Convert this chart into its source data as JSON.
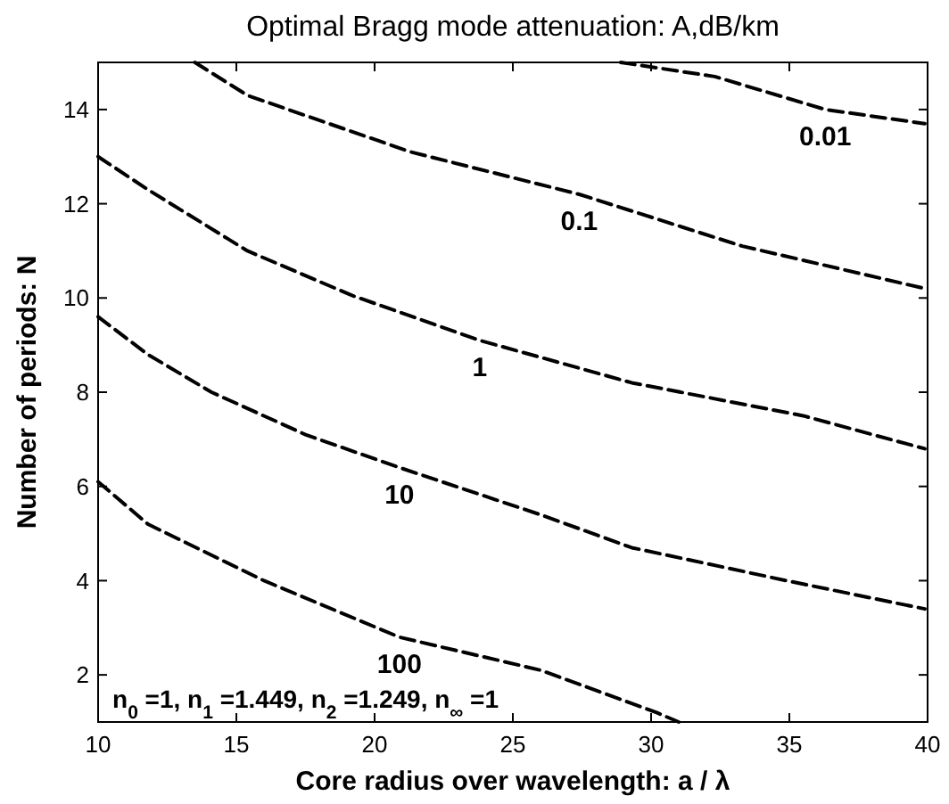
{
  "chart_data": {
    "type": "line",
    "title": "Optimal Bragg mode attenuation: A,dB/km",
    "xlabel": "Core radius over wavelength: a / λ",
    "ylabel": "Number of periods: N",
    "xlim": [
      10,
      40
    ],
    "ylim": [
      1,
      15
    ],
    "xticks": [
      10,
      15,
      20,
      25,
      30,
      35,
      40
    ],
    "yticks": [
      2,
      4,
      6,
      8,
      10,
      12,
      14
    ],
    "grid": false,
    "line_style": "dashed",
    "marker": "none",
    "annotations": [
      "n$_{0}$ =1,  n$_{1}$ =1.449,  n$_{2}$ =1.249,  n$_{∞}$ =1"
    ],
    "series": [
      {
        "name": "0.01",
        "color": "#000000",
        "x": [
          28.9,
          32.3,
          36.3,
          39.9
        ],
        "values": [
          15,
          14.7,
          14.0,
          13.7
        ]
      },
      {
        "name": "0.1",
        "color": "#000000",
        "x": [
          13.5,
          15.4,
          21.3,
          27.4,
          33.3,
          39.9
        ],
        "values": [
          15,
          14.3,
          13.1,
          12.2,
          11.1,
          10.2
        ]
      },
      {
        "name": "1",
        "color": "#000000",
        "x": [
          10,
          11.8,
          15.4,
          19.2,
          23.8,
          29.3,
          35.5,
          39.9
        ],
        "values": [
          13.0,
          12.3,
          11.0,
          10.05,
          9.1,
          8.2,
          7.5,
          6.8
        ]
      },
      {
        "name": "10",
        "color": "#000000",
        "x": [
          10,
          11.8,
          14.1,
          17.5,
          20.9,
          26.0,
          29.3,
          34.9,
          39.9
        ],
        "values": [
          9.6,
          8.8,
          8.0,
          7.1,
          6.4,
          5.4,
          4.7,
          4.0,
          3.4
        ]
      },
      {
        "name": "100",
        "color": "#000000",
        "x": [
          10,
          11.8,
          16.0,
          20.9,
          26.0,
          30.2,
          31.0
        ],
        "values": [
          6.1,
          5.2,
          4.0,
          2.8,
          2.1,
          1.2,
          1
        ]
      }
    ]
  }
}
